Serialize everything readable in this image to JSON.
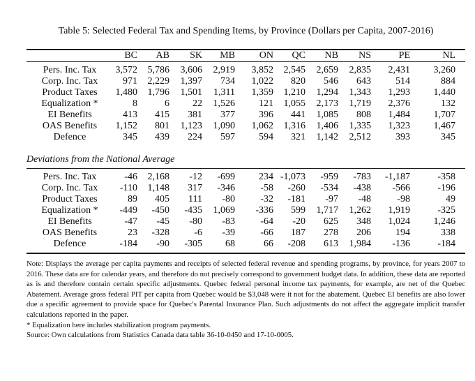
{
  "title": "Table 5: Selected Federal Tax and Spending Items, by Province (Dollars per Capita, 2007-2016)",
  "columns": [
    "BC",
    "AB",
    "SK",
    "MB",
    "ON",
    "QC",
    "NB",
    "NS",
    "PE",
    "NL"
  ],
  "sections": [
    {
      "name": "levels",
      "heading": null,
      "rows": [
        {
          "label": "Pers. Inc. Tax",
          "values": [
            "3,572",
            "5,786",
            "3,606",
            "2,919",
            "3,852",
            "2,545",
            "2,659",
            "2,835",
            "2,431",
            "3,260"
          ]
        },
        {
          "label": "Corp. Inc. Tax",
          "values": [
            "971",
            "2,229",
            "1,397",
            "734",
            "1,022",
            "820",
            "546",
            "643",
            "514",
            "884"
          ]
        },
        {
          "label": "Product Taxes",
          "values": [
            "1,480",
            "1,796",
            "1,501",
            "1,311",
            "1,359",
            "1,210",
            "1,294",
            "1,343",
            "1,293",
            "1,440"
          ]
        },
        {
          "label": "Equalization *",
          "values": [
            "8",
            "6",
            "22",
            "1,526",
            "121",
            "1,055",
            "2,173",
            "1,719",
            "2,376",
            "132"
          ]
        },
        {
          "label": "EI Benefits",
          "values": [
            "413",
            "415",
            "381",
            "377",
            "396",
            "441",
            "1,085",
            "808",
            "1,484",
            "1,707"
          ]
        },
        {
          "label": "OAS Benefits",
          "values": [
            "1,152",
            "801",
            "1,123",
            "1,090",
            "1,062",
            "1,316",
            "1,406",
            "1,335",
            "1,323",
            "1,467"
          ]
        },
        {
          "label": "Defence",
          "values": [
            "345",
            "439",
            "224",
            "597",
            "594",
            "321",
            "1,142",
            "2,512",
            "393",
            "345"
          ]
        }
      ]
    },
    {
      "name": "deviations",
      "heading": "Deviations from the National Average",
      "rows": [
        {
          "label": "Pers. Inc. Tax",
          "values": [
            "-46",
            "2,168",
            "-12",
            "-699",
            "234",
            "-1,073",
            "-959",
            "-783",
            "-1,187",
            "-358"
          ]
        },
        {
          "label": "Corp. Inc. Tax",
          "values": [
            "-110",
            "1,148",
            "317",
            "-346",
            "-58",
            "-260",
            "-534",
            "-438",
            "-566",
            "-196"
          ]
        },
        {
          "label": "Product Taxes",
          "values": [
            "89",
            "405",
            "111",
            "-80",
            "-32",
            "-181",
            "-97",
            "-48",
            "-98",
            "49"
          ]
        },
        {
          "label": "Equalization *",
          "values": [
            "-449",
            "-450",
            "-435",
            "1,069",
            "-336",
            "599",
            "1,717",
            "1,262",
            "1,919",
            "-325"
          ]
        },
        {
          "label": "EI Benefits",
          "values": [
            "-47",
            "-45",
            "-80",
            "-83",
            "-64",
            "-20",
            "625",
            "348",
            "1,024",
            "1,246"
          ]
        },
        {
          "label": "OAS Benefits",
          "values": [
            "23",
            "-328",
            "-6",
            "-39",
            "-66",
            "187",
            "278",
            "206",
            "194",
            "338"
          ]
        },
        {
          "label": "Defence",
          "values": [
            "-184",
            "-90",
            "-305",
            "68",
            "66",
            "-208",
            "613",
            "1,984",
            "-136",
            "-184"
          ]
        }
      ]
    }
  ],
  "notes": {
    "note": "Note: Displays the average per capita payments and receipts of selected federal revenue and spending programs, by province, for years 2007 to 2016. These data are for calendar years, and therefore do not precisely correspond to government budget data. In addition, these data are reported as is and therefore contain certain specific adjustments. Quebec federal personal income tax payments, for example, are net of the Quebec Abatement. Average gross federal PIT per capita from Quebec would be $3,048 were it not for the abatement. Quebec EI benefits are also lower due a specific agreement to provide space for Quebec's Parental Insurance Plan. Such adjustments do not affect the aggregate implicit transfer calculations reported in the paper.",
    "footnote": "* Equalization here includes stabilization program payments.",
    "source": "Source: Own calculations from Statistics Canada data table 36-10-0450 and 17-10-0005."
  }
}
